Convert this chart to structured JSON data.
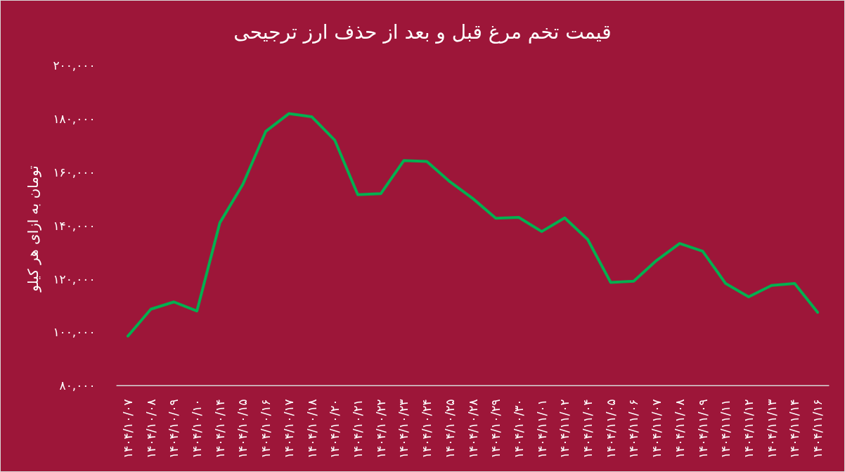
{
  "chart_data": {
    "type": "line",
    "title": "قیمت تخم مرغ قبل و بعد از حذف ارز ترجیحی",
    "ylabel": "تومان به ازای هر کیلو",
    "categories": [
      "۱۴۰۴/۱۰/۰۷",
      "۱۴۰۴/۱۰/۰۸",
      "۱۴۰۴/۱۰/۰۹",
      "۱۴۰۴/۱۰/۱۰",
      "۱۴۰۴/۱۰/۱۴",
      "۱۴۰۴/۱۰/۱۵",
      "۱۴۰۴/۱۰/۱۶",
      "۱۴۰۴/۱۰/۱۷",
      "۱۴۰۴/۱۰/۱۸",
      "۱۴۰۴/۱۰/۲۰",
      "۱۴۰۴/۱۰/۲۱",
      "۱۴۰۴/۱۰/۲۲",
      "۱۴۰۴/۱۰/۲۳",
      "۱۴۰۴/۱۰/۲۴",
      "۱۴۰۴/۱۰/۲۵",
      "۱۴۰۴/۱۰/۲۸",
      "۱۴۰۴/۱۰/۲۹",
      "۱۴۰۴/۱۰/۳۰",
      "۱۴۰۴/۱۱/۰۱",
      "۱۴۰۴/۱۱/۰۲",
      "۱۴۰۴/۱۱/۰۴",
      "۱۴۰۴/۱۱/۰۵",
      "۱۴۰۴/۱۱/۰۶",
      "۱۴۰۴/۱۱/۰۷",
      "۱۴۰۴/۱۱/۰۸",
      "۱۴۰۴/۱۱/۰۹",
      "۱۴۰۴/۱۱/۱۱",
      "۱۴۰۴/۱۱/۱۲",
      "۱۴۰۴/۱۱/۱۳",
      "۱۴۰۴/۱۱/۱۴",
      "۱۴۰۴/۱۱/۱۶"
    ],
    "series": [
      {
        "color": "#00b050",
        "values": [
          98600,
          108700,
          111400,
          108000,
          141100,
          155500,
          175400,
          182000,
          180800,
          172000,
          151600,
          152000,
          164400,
          164100,
          156500,
          150200,
          142800,
          143100,
          137800,
          142900,
          134800,
          118700,
          119200,
          127000,
          133300,
          130400,
          118300,
          113300,
          117600,
          118300,
          107500
        ]
      }
    ],
    "ylim": [
      80000,
      200000
    ],
    "yticks": [
      {
        "value": 80000,
        "label": "۸۰,۰۰۰"
      },
      {
        "value": 100000,
        "label": "۱۰۰,۰۰۰"
      },
      {
        "value": 120000,
        "label": "۱۲۰,۰۰۰"
      },
      {
        "value": 140000,
        "label": "۱۴۰,۰۰۰"
      },
      {
        "value": 160000,
        "label": "۱۶۰,۰۰۰"
      },
      {
        "value": 180000,
        "label": "۱۸۰,۰۰۰"
      },
      {
        "value": 200000,
        "label": "۲۰۰,۰۰۰"
      }
    ]
  }
}
